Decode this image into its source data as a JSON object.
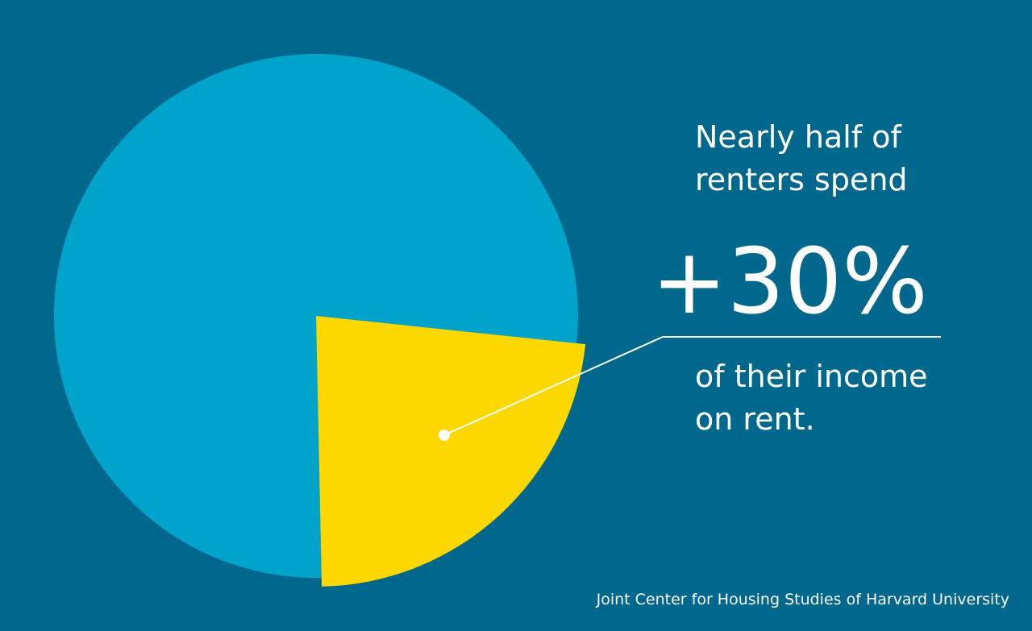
{
  "chart_data": {
    "type": "pie",
    "categories": [
      null,
      null
    ],
    "values": [
      23,
      77
    ],
    "colors": [
      "#fcd800",
      "#00a4ca"
    ],
    "annotation": {
      "lead": [
        "Nearly half of",
        "renters spend"
      ],
      "figure": "+30%",
      "tail": [
        "of their income",
        "on rent."
      ]
    },
    "source": "Joint Center for Housing Studies of Harvard University"
  }
}
